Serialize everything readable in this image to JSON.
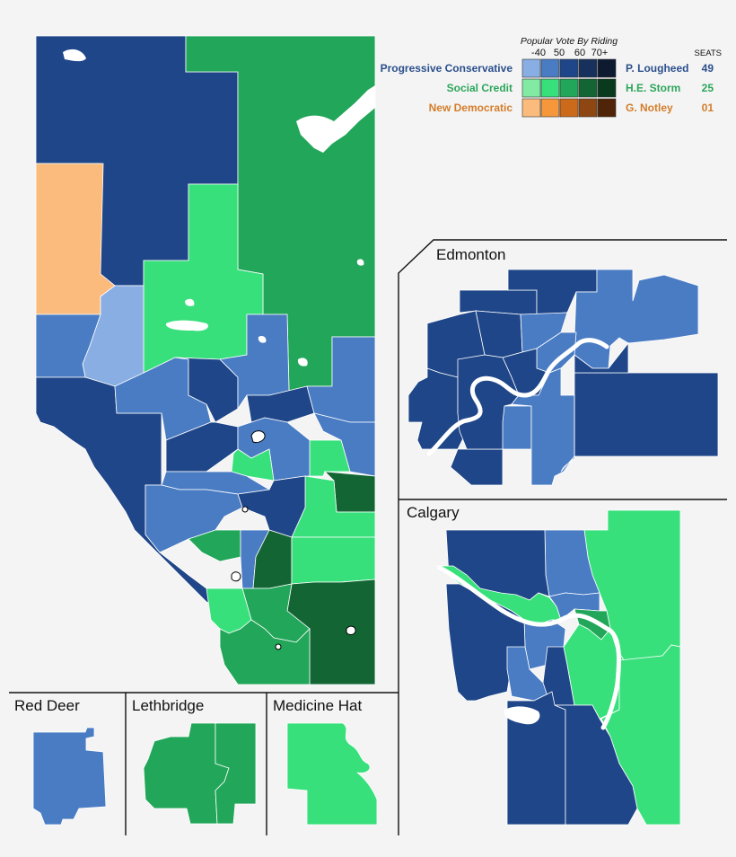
{
  "legend": {
    "heading": "Popular Vote By Riding",
    "bins": [
      "-40",
      "50",
      "60",
      "70+"
    ],
    "seats_heading": "SEATS",
    "parties": [
      {
        "name": "Progressive Conservative",
        "leader": "P. Lougheed",
        "seats": "49",
        "color": "#2b4f8c",
        "shades": [
          "#89aee3",
          "#4a7cc4",
          "#1f4688",
          "#17305c",
          "#0d1a30"
        ]
      },
      {
        "name": "Social Credit",
        "leader": "H.E. Storm",
        "seats": "25",
        "color": "#2ca65a",
        "shades": [
          "#82eaa3",
          "#38e07c",
          "#22a659",
          "#136634",
          "#0a3a1d"
        ]
      },
      {
        "name": "New Democratic",
        "leader": "G. Notley",
        "seats": "01",
        "color": "#d47d2a",
        "shades": [
          "#fbbb7c",
          "#f5973a",
          "#cc6a1c",
          "#8e4712",
          "#502408"
        ]
      }
    ]
  },
  "insets": {
    "edmonton": "Edmonton",
    "calgary": "Calgary",
    "red_deer": "Red Deer",
    "lethbridge": "Lethbridge",
    "medicine_hat": "Medicine Hat"
  }
}
